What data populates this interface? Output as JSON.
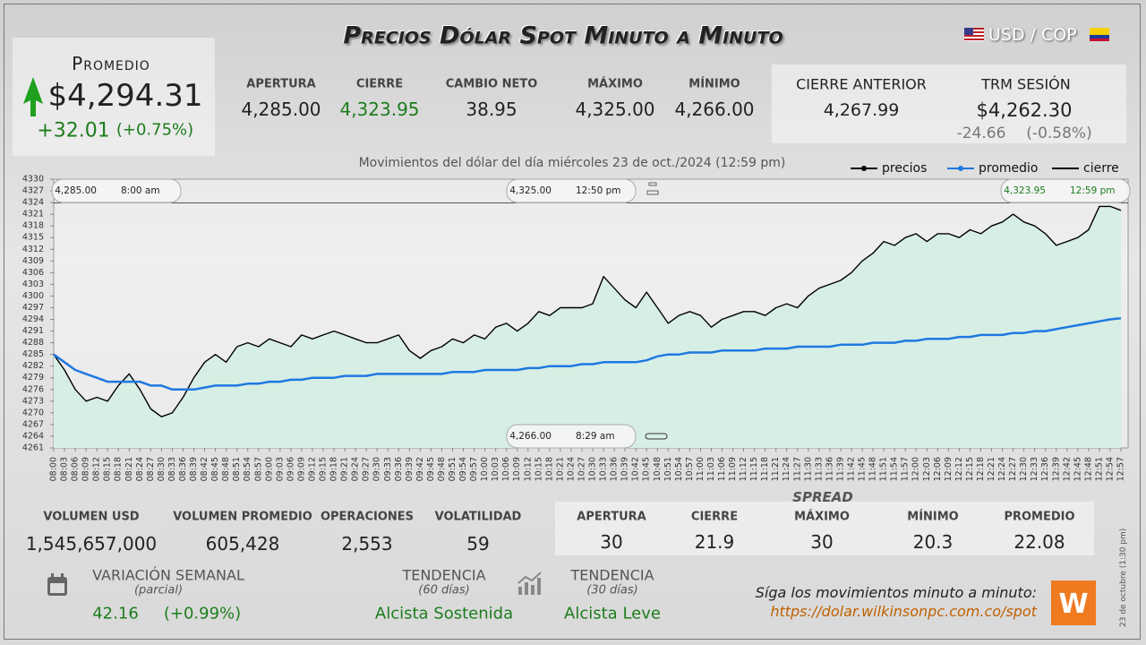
{
  "header": {
    "title": "Precios Dólar Spot Minuto a Minuto",
    "pair": "USD / COP"
  },
  "promedio": {
    "label": "Promedio",
    "value": "$4,294.31",
    "change": "+32.01",
    "change_pct": "(+0.75%)"
  },
  "session": [
    {
      "label": "APERTURA",
      "value": "4,285.00"
    },
    {
      "label": "CIERRE",
      "value": "4,323.95"
    },
    {
      "label": "CAMBIO NETO",
      "value": "38.95"
    },
    {
      "label": "MÁXIMO",
      "value": "4,325.00"
    },
    {
      "label": "MÍNIMO",
      "value": "4,266.00"
    }
  ],
  "previous": {
    "cierre_anterior": {
      "label": "CIERRE ANTERIOR",
      "value": "4,267.99"
    },
    "trm": {
      "label": "TRM SESIÓN",
      "value": "$4,262.30",
      "change": "-24.66",
      "change_pct": "(-0.58%)"
    }
  },
  "chart_data": {
    "type": "line",
    "subtitle": "Movimientos del dólar del día miércoles 23 de oct./2024 (12:59 pm)",
    "categories": [
      "08:00",
      "08:03",
      "08:06",
      "08:09",
      "08:12",
      "08:15",
      "08:18",
      "08:21",
      "08:24",
      "08:27",
      "08:30",
      "08:33",
      "08:36",
      "08:39",
      "08:42",
      "08:45",
      "08:48",
      "08:51",
      "08:54",
      "08:57",
      "09:00",
      "09:03",
      "09:06",
      "09:09",
      "09:12",
      "09:15",
      "09:18",
      "09:21",
      "09:24",
      "09:27",
      "09:30",
      "09:33",
      "09:36",
      "09:39",
      "09:42",
      "09:45",
      "09:48",
      "09:51",
      "09:54",
      "09:57",
      "10:00",
      "10:03",
      "10:06",
      "10:09",
      "10:12",
      "10:15",
      "10:18",
      "10:21",
      "10:24",
      "10:27",
      "10:30",
      "10:33",
      "10:36",
      "10:39",
      "10:42",
      "10:45",
      "10:48",
      "10:51",
      "10:54",
      "10:57",
      "11:00",
      "11:03",
      "11:06",
      "11:09",
      "11:12",
      "11:15",
      "11:18",
      "11:21",
      "11:24",
      "11:27",
      "11:30",
      "11:33",
      "11:36",
      "11:39",
      "11:42",
      "11:45",
      "11:48",
      "11:51",
      "11:54",
      "11:57",
      "12:00",
      "12:03",
      "12:06",
      "12:09",
      "12:12",
      "12:15",
      "12:18",
      "12:21",
      "12:24",
      "12:27",
      "12:30",
      "12:33",
      "12:36",
      "12:39",
      "12:42",
      "12:45",
      "12:48",
      "12:51",
      "12:54",
      "12:57"
    ],
    "series": [
      {
        "name": "precios",
        "color": "#000000",
        "values": [
          4285,
          4281,
          4276,
          4273,
          4274,
          4273,
          4277,
          4280,
          4276,
          4271,
          4269,
          4270,
          4274,
          4279,
          4283,
          4285,
          4283,
          4287,
          4288,
          4287,
          4289,
          4288,
          4287,
          4290,
          4289,
          4290,
          4291,
          4290,
          4289,
          4288,
          4288,
          4289,
          4290,
          4286,
          4284,
          4286,
          4287,
          4289,
          4288,
          4290,
          4289,
          4292,
          4293,
          4291,
          4293,
          4296,
          4295,
          4297,
          4297,
          4297,
          4298,
          4305,
          4302,
          4299,
          4297,
          4301,
          4297,
          4293,
          4295,
          4296,
          4295,
          4292,
          4294,
          4295,
          4296,
          4296,
          4295,
          4297,
          4298,
          4297,
          4300,
          4302,
          4303,
          4304,
          4306,
          4309,
          4311,
          4314,
          4313,
          4315,
          4316,
          4314,
          4316,
          4316,
          4315,
          4317,
          4316,
          4318,
          4319,
          4321,
          4319,
          4318,
          4316,
          4313,
          4314,
          4315,
          4317,
          4323,
          4323,
          4322
        ]
      },
      {
        "name": "promedio",
        "color": "#1f78e0",
        "values": [
          4285,
          4283,
          4281,
          4280,
          4279,
          4278,
          4278,
          4278,
          4278,
          4277,
          4277,
          4276,
          4276,
          4276,
          4276.5,
          4277,
          4277,
          4277,
          4277.5,
          4277.5,
          4278,
          4278,
          4278.5,
          4278.5,
          4279,
          4279,
          4279,
          4279.5,
          4279.5,
          4279.5,
          4280,
          4280,
          4280,
          4280,
          4280,
          4280,
          4280,
          4280.5,
          4280.5,
          4280.5,
          4281,
          4281,
          4281,
          4281,
          4281.5,
          4281.5,
          4282,
          4282,
          4282,
          4282.5,
          4282.5,
          4283,
          4283,
          4283,
          4283,
          4283.5,
          4284.5,
          4285,
          4285,
          4285.5,
          4285.5,
          4285.5,
          4286,
          4286,
          4286,
          4286,
          4286.5,
          4286.5,
          4286.5,
          4287,
          4287,
          4287,
          4287,
          4287.5,
          4287.5,
          4287.5,
          4288,
          4288,
          4288,
          4288.5,
          4288.5,
          4289,
          4289,
          4289,
          4289.5,
          4289.5,
          4290,
          4290,
          4290,
          4290.5,
          4290.5,
          4291,
          4291,
          4291.5,
          4292,
          4292.5,
          4293,
          4293.5,
          4294,
          4294.3
        ]
      }
    ],
    "reference_lines": [
      {
        "name": "cierre",
        "value": 4323.95,
        "color": "#000000"
      }
    ],
    "annotations": [
      {
        "value": "4,285.00",
        "time": "8:00 am"
      },
      {
        "value": "4,325.00",
        "time": "12:50 pm"
      },
      {
        "value": "4,323.95",
        "time": "12:59 pm"
      },
      {
        "value": "4,266.00",
        "time": "8:29 am"
      }
    ],
    "area_color": "#d7eee5",
    "ylim": [
      4261,
      4330
    ],
    "yticks": [
      4261,
      4264,
      4267,
      4270,
      4273,
      4276,
      4279,
      4282,
      4285,
      4288,
      4291,
      4294,
      4297,
      4300,
      4303,
      4306,
      4309,
      4312,
      4315,
      4318,
      4321,
      4324,
      4327,
      4330
    ],
    "grid": false,
    "legend": "top-right"
  },
  "volume": [
    {
      "label": "VOLUMEN USD",
      "value": "1,545,657,000"
    },
    {
      "label": "VOLUMEN PROMEDIO",
      "value": "605,428"
    },
    {
      "label": "OPERACIONES",
      "value": "2,553"
    },
    {
      "label": "VOLATILIDAD",
      "value": "59"
    }
  ],
  "spread": {
    "title": "SPREAD",
    "columns": [
      {
        "label": "APERTURA",
        "value": "30"
      },
      {
        "label": "CIERRE",
        "value": "21.9"
      },
      {
        "label": "MÁXIMO",
        "value": "30"
      },
      {
        "label": "MÍNIMO",
        "value": "20.3"
      },
      {
        "label": "PROMEDIO",
        "value": "22.08"
      }
    ]
  },
  "weekly": {
    "label": "VARIACIÓN SEMANAL",
    "note": "(parcial)",
    "change": "42.16",
    "change_pct": "(+0.99%)"
  },
  "trends": [
    {
      "label": "TENDENCIA",
      "period": "(60 días)",
      "value": "Alcista Sostenida"
    },
    {
      "label": "TENDENCIA",
      "period": "(30 días)",
      "value": "Alcista Leve"
    }
  ],
  "footer": {
    "prompt": "Síga los movimientos minuto a minuto:",
    "url": "https://dolar.wilkinsonpc.com.co/spot",
    "timestamp": "23 de octubre (1:30 pm)"
  }
}
